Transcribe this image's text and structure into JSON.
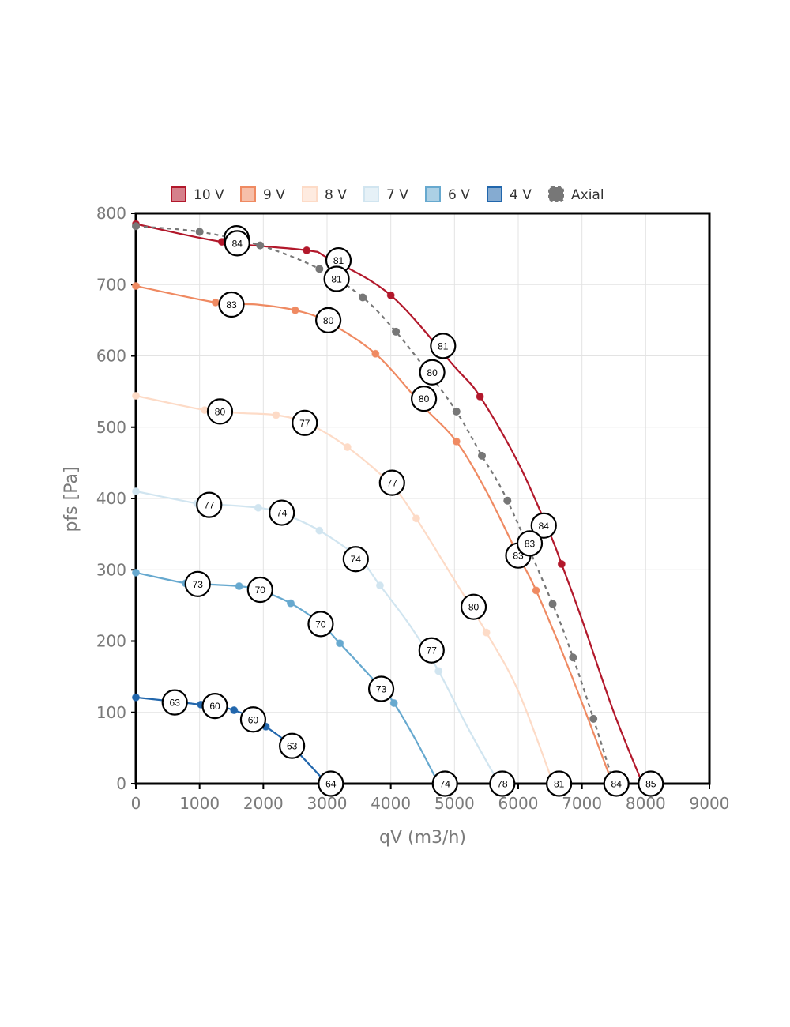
{
  "chart_data": {
    "type": "line",
    "title": "",
    "xlabel": "qV (m3/h)",
    "ylabel": "pfs [Pa]",
    "xlim": [
      0,
      9000
    ],
    "ylim": [
      0,
      800
    ],
    "xticks": [
      0,
      1000,
      2000,
      3000,
      4000,
      5000,
      6000,
      7000,
      8000,
      9000
    ],
    "yticks": [
      0,
      100,
      200,
      300,
      400,
      500,
      600,
      700,
      800
    ],
    "xtick_labels": [
      "0",
      "1000",
      "2000",
      "3000",
      "4000",
      "5000",
      "6000",
      "7000",
      "8000",
      "9000"
    ],
    "ytick_labels": [
      "0",
      "100",
      "200",
      "300",
      "400",
      "500",
      "600",
      "700",
      "800"
    ],
    "grid": true,
    "legend_position": "top",
    "series": [
      {
        "name": "10 V",
        "color": "#b2182b",
        "dashed": false,
        "points": [
          [
            0,
            785
          ],
          [
            1350,
            760
          ],
          [
            2680,
            748
          ],
          [
            3000,
            738
          ],
          [
            4000,
            685
          ],
          [
            5000,
            585
          ],
          [
            5400,
            543
          ],
          [
            6000,
            450
          ],
          [
            6500,
            350
          ],
          [
            6680,
            308
          ],
          [
            7000,
            230
          ],
          [
            7500,
            100
          ],
          [
            7950,
            0
          ]
        ],
        "markers": [
          [
            0,
            785
          ],
          [
            1350,
            760
          ],
          [
            2680,
            748
          ],
          [
            4000,
            685
          ],
          [
            5400,
            543
          ],
          [
            6680,
            308
          ]
        ],
        "labels": [
          {
            "x": 1580,
            "y": 765,
            "text": ""
          },
          {
            "x": 3180,
            "y": 734,
            "text": "81"
          },
          {
            "x": 4820,
            "y": 614,
            "text": "81"
          },
          {
            "x": 6400,
            "y": 362,
            "text": "84"
          },
          {
            "x": 8080,
            "y": 0,
            "text": "85"
          }
        ]
      },
      {
        "name": "9 V",
        "color": "#ef8a62",
        "dashed": false,
        "points": [
          [
            0,
            698
          ],
          [
            1250,
            675
          ],
          [
            1900,
            672
          ],
          [
            2500,
            664
          ],
          [
            3000,
            648
          ],
          [
            3760,
            603
          ],
          [
            4500,
            530
          ],
          [
            5030,
            480
          ],
          [
            5500,
            410
          ],
          [
            6000,
            320
          ],
          [
            6280,
            271
          ],
          [
            6800,
            160
          ],
          [
            7480,
            0
          ]
        ],
        "markers": [
          [
            0,
            698
          ],
          [
            1250,
            675
          ],
          [
            2500,
            664
          ],
          [
            3760,
            603
          ],
          [
            5030,
            480
          ],
          [
            6280,
            271
          ]
        ],
        "labels": [
          {
            "x": 1500,
            "y": 672,
            "text": "83"
          },
          {
            "x": 3020,
            "y": 650,
            "text": "80"
          },
          {
            "x": 4520,
            "y": 540,
            "text": "80"
          },
          {
            "x": 6000,
            "y": 320,
            "text": "83"
          },
          {
            "x": 7540,
            "y": 0,
            "text": "84"
          }
        ]
      },
      {
        "name": "8 V",
        "color": "#fddbc7",
        "dashed": false,
        "points": [
          [
            0,
            544
          ],
          [
            1080,
            524
          ],
          [
            1600,
            520
          ],
          [
            2200,
            517
          ],
          [
            2700,
            505
          ],
          [
            3320,
            472
          ],
          [
            4000,
            420
          ],
          [
            4400,
            372
          ],
          [
            4900,
            300
          ],
          [
            5500,
            212
          ],
          [
            6000,
            130
          ],
          [
            6550,
            0
          ]
        ],
        "markers": [
          [
            0,
            544
          ],
          [
            1080,
            524
          ],
          [
            2200,
            517
          ],
          [
            3320,
            472
          ],
          [
            4400,
            372
          ],
          [
            5500,
            212
          ]
        ],
        "labels": [
          {
            "x": 1320,
            "y": 522,
            "text": "80"
          },
          {
            "x": 2650,
            "y": 506,
            "text": "77"
          },
          {
            "x": 4020,
            "y": 422,
            "text": "77"
          },
          {
            "x": 5300,
            "y": 248,
            "text": "80"
          },
          {
            "x": 6640,
            "y": 0,
            "text": "81"
          }
        ]
      },
      {
        "name": "7 V",
        "color": "#d1e5f0",
        "dashed": false,
        "points": [
          [
            0,
            410
          ],
          [
            960,
            393
          ],
          [
            1200,
            392
          ],
          [
            1920,
            387
          ],
          [
            2300,
            379
          ],
          [
            2880,
            355
          ],
          [
            3500,
            316
          ],
          [
            3830,
            278
          ],
          [
            4300,
            222
          ],
          [
            4750,
            158
          ],
          [
            5200,
            80
          ],
          [
            5700,
            0
          ]
        ],
        "markers": [
          [
            0,
            410
          ],
          [
            960,
            393
          ],
          [
            1920,
            387
          ],
          [
            2880,
            355
          ],
          [
            3830,
            278
          ],
          [
            4750,
            158
          ]
        ],
        "labels": [
          {
            "x": 1150,
            "y": 391,
            "text": "77"
          },
          {
            "x": 2290,
            "y": 380,
            "text": "74"
          },
          {
            "x": 3450,
            "y": 315,
            "text": "74"
          },
          {
            "x": 4640,
            "y": 187,
            "text": "77"
          },
          {
            "x": 5750,
            "y": 0,
            "text": "78"
          }
        ]
      },
      {
        "name": "6 V",
        "color": "#67a9cf",
        "dashed": false,
        "points": [
          [
            0,
            296
          ],
          [
            780,
            281
          ],
          [
            1000,
            280
          ],
          [
            1620,
            277
          ],
          [
            1950,
            271
          ],
          [
            2430,
            253
          ],
          [
            2920,
            223
          ],
          [
            3200,
            197
          ],
          [
            3860,
            133
          ],
          [
            4050,
            113
          ],
          [
            4400,
            60
          ],
          [
            4750,
            0
          ]
        ],
        "markers": [
          [
            0,
            296
          ],
          [
            780,
            281
          ],
          [
            1620,
            277
          ],
          [
            2430,
            253
          ],
          [
            3200,
            197
          ],
          [
            4050,
            113
          ]
        ],
        "labels": [
          {
            "x": 970,
            "y": 280,
            "text": "73"
          },
          {
            "x": 1950,
            "y": 272,
            "text": "70"
          },
          {
            "x": 2900,
            "y": 224,
            "text": "70"
          },
          {
            "x": 3850,
            "y": 133,
            "text": "73"
          },
          {
            "x": 4850,
            "y": 0,
            "text": "74"
          }
        ]
      },
      {
        "name": "4 V",
        "color": "#2166ac",
        "dashed": false,
        "points": [
          [
            0,
            121
          ],
          [
            620,
            115
          ],
          [
            1020,
            111
          ],
          [
            1240,
            110
          ],
          [
            1540,
            103
          ],
          [
            1870,
            91
          ],
          [
            2040,
            80
          ],
          [
            2450,
            52
          ],
          [
            3000,
            0
          ]
        ],
        "markers": [
          [
            0,
            121
          ],
          [
            1020,
            111
          ],
          [
            1540,
            103
          ],
          [
            2040,
            80
          ]
        ],
        "labels": [
          {
            "x": 610,
            "y": 114,
            "text": "63"
          },
          {
            "x": 1240,
            "y": 109,
            "text": "60"
          },
          {
            "x": 1840,
            "y": 90,
            "text": "60"
          },
          {
            "x": 2450,
            "y": 53,
            "text": "63"
          },
          {
            "x": 3060,
            "y": 0,
            "text": "64"
          }
        ]
      },
      {
        "name": "Axial",
        "color": "#777777",
        "dashed": true,
        "points": [
          [
            0,
            782
          ],
          [
            1000,
            774
          ],
          [
            1950,
            755
          ],
          [
            2880,
            722
          ],
          [
            3560,
            682
          ],
          [
            4080,
            634
          ],
          [
            4600,
            575
          ],
          [
            5030,
            522
          ],
          [
            5430,
            460
          ],
          [
            5830,
            397
          ],
          [
            6540,
            252
          ],
          [
            6860,
            177
          ],
          [
            7180,
            91
          ],
          [
            7500,
            0
          ]
        ],
        "markers": [
          [
            0,
            782
          ],
          [
            1000,
            774
          ],
          [
            1950,
            755
          ],
          [
            2880,
            722
          ],
          [
            3560,
            682
          ],
          [
            4080,
            634
          ],
          [
            5030,
            522
          ],
          [
            5430,
            460
          ],
          [
            5830,
            397
          ],
          [
            6540,
            252
          ],
          [
            6860,
            177
          ],
          [
            7180,
            91
          ]
        ],
        "labels": [
          {
            "x": 1590,
            "y": 758,
            "text": "84"
          },
          {
            "x": 3150,
            "y": 708,
            "text": "81"
          },
          {
            "x": 4650,
            "y": 577,
            "text": "80"
          },
          {
            "x": 6180,
            "y": 337,
            "text": "83"
          }
        ]
      }
    ]
  }
}
